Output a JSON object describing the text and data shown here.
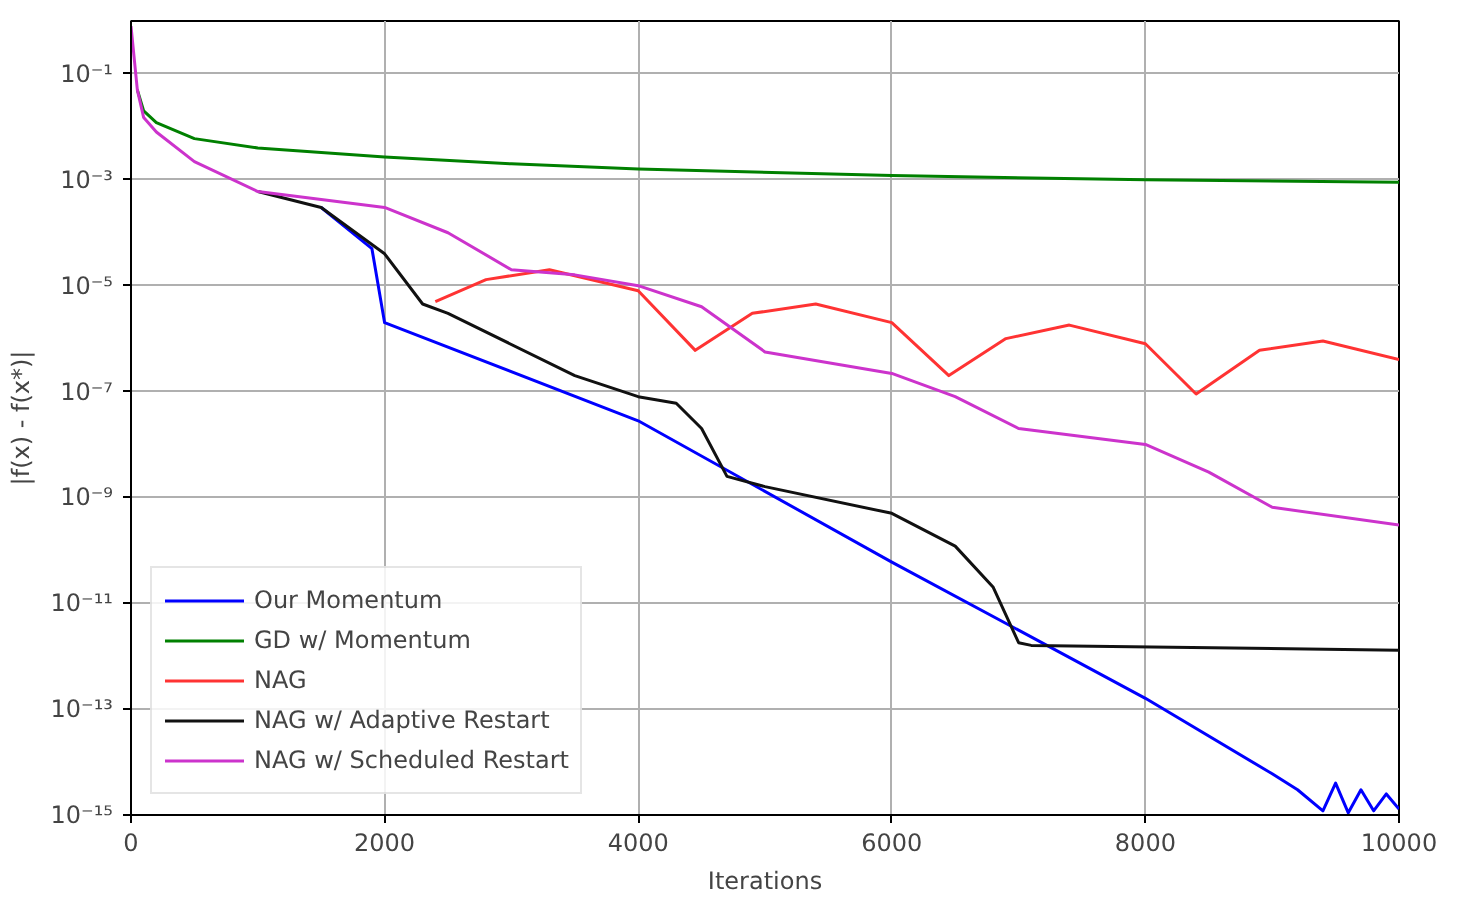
{
  "chart_data": {
    "type": "line",
    "xlabel": "Iterations",
    "ylabel": "|f(x) - f(x*)|",
    "xlim": [
      0,
      10000
    ],
    "xticks": [
      0,
      2000,
      4000,
      6000,
      8000,
      10000
    ],
    "ylim": [
      1e-15,
      1
    ],
    "log": "y",
    "grid": true,
    "legend": "bottom left",
    "line_style": "solid",
    "marker": "none",
    "yticks": [
      {
        "value": 1e-15,
        "label": "10⁻¹⁵"
      },
      {
        "value": 1e-13,
        "label": "10⁻¹³"
      },
      {
        "value": 1e-11,
        "label": "10⁻¹¹"
      },
      {
        "value": 1e-09,
        "label": "10⁻⁹"
      },
      {
        "value": 1e-07,
        "label": "10⁻⁷"
      },
      {
        "value": 1e-05,
        "label": "10⁻⁵"
      },
      {
        "value": 0.001,
        "label": "10⁻³"
      },
      {
        "value": 0.1,
        "label": "10⁻¹"
      }
    ],
    "series": [
      {
        "name": "Our Momentum",
        "color": "#0000ff",
        "x": [
          1500,
          1900,
          2000,
          4000,
          6000,
          8000,
          9000,
          9200,
          9400,
          9500,
          9600,
          9700,
          9800,
          9900,
          10000
        ],
        "values": [
          0.0003,
          5e-05,
          2e-06,
          2.8e-08,
          6e-11,
          1.6e-13,
          6e-15,
          3e-15,
          1.2e-15,
          4e-15,
          1.1e-15,
          3e-15,
          1.2e-15,
          2.5e-15,
          1.3e-15
        ]
      },
      {
        "name": "GD w/ Momentum",
        "color": "#008000",
        "x": [
          50,
          100,
          200,
          500,
          1000,
          2000,
          3000,
          4000,
          6000,
          8000,
          10000
        ],
        "values": [
          0.05,
          0.02,
          0.012,
          0.006,
          0.004,
          0.0027,
          0.002,
          0.0016,
          0.0012,
          0.001,
          0.0009
        ]
      },
      {
        "name": "NAG",
        "color": "#ff3333",
        "x": [
          2400,
          2800,
          3300,
          4000,
          4450,
          4900,
          5400,
          6000,
          6450,
          6900,
          7400,
          8000,
          8400,
          8900,
          9400,
          10000
        ],
        "values": [
          5e-06,
          1.3e-05,
          2e-05,
          8e-06,
          6e-07,
          3e-06,
          4.5e-06,
          2e-06,
          2e-07,
          1e-06,
          1.8e-06,
          8e-07,
          9e-08,
          6e-07,
          9e-07,
          4e-07
        ]
      },
      {
        "name": "NAG w/ Adaptive Restart",
        "color": "#111111",
        "x": [
          1000,
          1500,
          2000,
          2300,
          2500,
          3500,
          4000,
          4300,
          4500,
          4700,
          5000,
          6000,
          6500,
          6800,
          7000,
          7100,
          10000
        ],
        "values": [
          0.0006,
          0.0003,
          4e-05,
          4.5e-06,
          3e-06,
          2e-07,
          8e-08,
          6e-08,
          2e-08,
          2.5e-09,
          1.6e-09,
          5e-10,
          1.2e-10,
          2e-11,
          1.8e-12,
          1.6e-12,
          1.3e-12
        ]
      },
      {
        "name": "NAG w/ Scheduled Restart",
        "color": "#cc33cc",
        "x": [
          0,
          50,
          100,
          200,
          500,
          1000,
          2000,
          2500,
          3000,
          3500,
          4000,
          4500,
          5000,
          6000,
          6500,
          7000,
          8000,
          8500,
          9000,
          10000
        ],
        "values": [
          0.8,
          0.05,
          0.015,
          0.008,
          0.0022,
          0.0006,
          0.0003,
          0.0001,
          2e-05,
          1.6e-05,
          1e-05,
          4e-06,
          5.6e-07,
          2.2e-07,
          8e-08,
          2e-08,
          1e-08,
          3e-09,
          6.5e-10,
          3e-10
        ]
      }
    ]
  }
}
